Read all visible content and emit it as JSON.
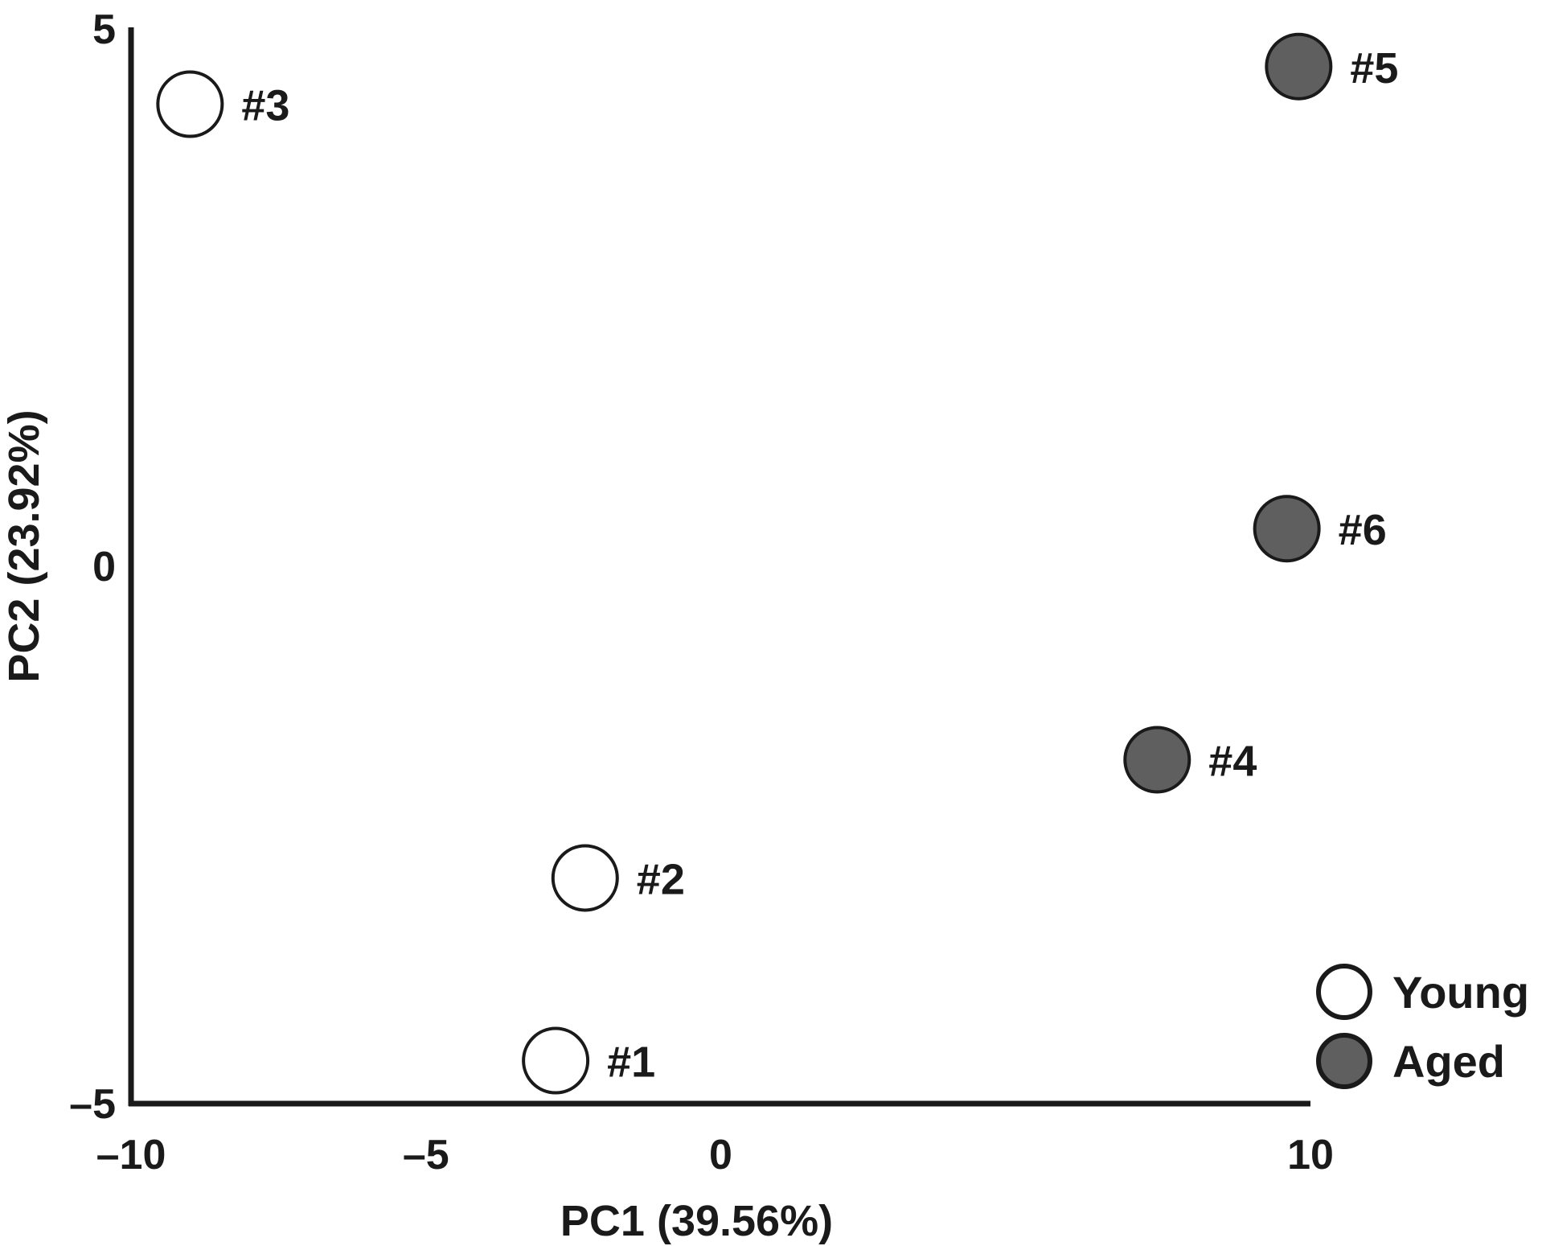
{
  "chart_data": {
    "type": "scatter",
    "title": "",
    "xlabel": "PC1 (39.56%)",
    "ylabel": "PC2 (23.92%)",
    "xlim": [
      -10,
      10
    ],
    "ylim": [
      -5,
      5
    ],
    "xticks": [
      -10,
      -5,
      0,
      10
    ],
    "xtick_labels": [
      "–10",
      "–5",
      "0",
      "10"
    ],
    "yticks": [
      5,
      0,
      -5
    ],
    "ytick_labels": [
      "5",
      "0",
      "–5"
    ],
    "grid": false,
    "legend_position": "bottom-right",
    "series": [
      {
        "name": "Young",
        "marker_fill": "#ffffff",
        "points": [
          {
            "label": "#1",
            "x": -2.8,
            "y": -4.6
          },
          {
            "label": "#2",
            "x": -2.3,
            "y": -2.9
          },
          {
            "label": "#3",
            "x": -9.0,
            "y": 4.3
          }
        ]
      },
      {
        "name": "Aged",
        "marker_fill": "#5f5f5f",
        "points": [
          {
            "label": "#4",
            "x": 7.4,
            "y": -1.8
          },
          {
            "label": "#5",
            "x": 9.8,
            "y": 4.65
          },
          {
            "label": "#6",
            "x": 9.6,
            "y": 0.35
          }
        ]
      }
    ]
  }
}
